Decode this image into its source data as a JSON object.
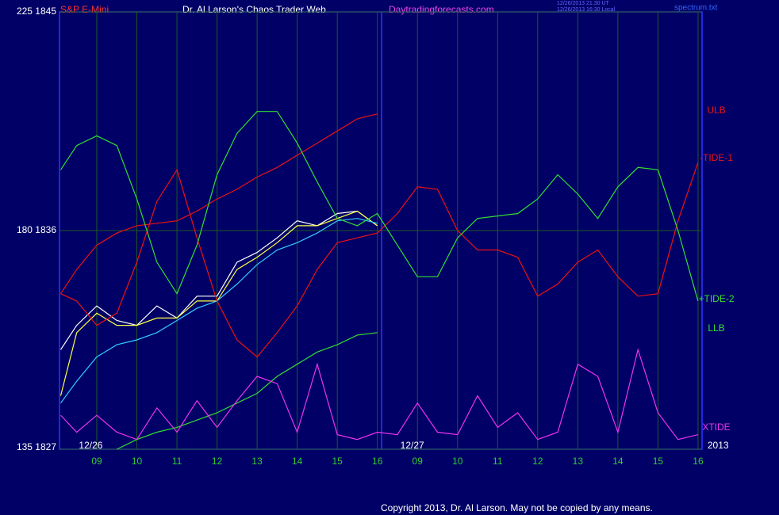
{
  "chart_data": {
    "type": "line",
    "header": {
      "instrument": "S&P E-Mini",
      "title": "Dr. Al Larson's Chaos Trader Web",
      "site": "Daytradingforecasts.com",
      "stamp_1": "12/26/2013 21:30 UT",
      "stamp_2": "12/26/2013 16:30 Local",
      "file": "spectrum.txt"
    },
    "footer": "Copyright 2013, Dr. Al Larson. May not be copied by any means.",
    "x": [
      0.1,
      0.5,
      1,
      1.5,
      2,
      2.5,
      3,
      3.5,
      4,
      4.5,
      5,
      5.5,
      6,
      6.5,
      7,
      7.5,
      8,
      8.5,
      9,
      9.5,
      10,
      10.5,
      11,
      11.5,
      12,
      12.5,
      13,
      13.5,
      14,
      14.5,
      15,
      15.5,
      16
    ],
    "xlim": [
      0.07,
      16.1
    ],
    "xticks": [
      {
        "value": 1,
        "label": "09"
      },
      {
        "value": 2,
        "label": "10"
      },
      {
        "value": 3,
        "label": "11"
      },
      {
        "value": 4,
        "label": "12"
      },
      {
        "value": 5,
        "label": "13"
      },
      {
        "value": 6,
        "label": "14"
      },
      {
        "value": 7,
        "label": "15"
      },
      {
        "value": 8,
        "label": "16"
      },
      {
        "value": 9,
        "label": "09"
      },
      {
        "value": 10,
        "label": "10"
      },
      {
        "value": 11,
        "label": "11"
      },
      {
        "value": 12,
        "label": "12"
      },
      {
        "value": 13,
        "label": "13"
      },
      {
        "value": 14,
        "label": "14"
      },
      {
        "value": 15,
        "label": "15"
      },
      {
        "value": 16,
        "label": "16"
      }
    ],
    "date_labels": [
      {
        "value": 0.85,
        "label": "12/26"
      },
      {
        "value": 8.87,
        "label": "12/27"
      },
      {
        "value": 16.5,
        "label": "2013"
      }
    ],
    "ylim": [
      1827,
      1845
    ],
    "yticks": [
      {
        "value": 1827,
        "label": "135 1827"
      },
      {
        "value": 1836,
        "label": "180 1836"
      },
      {
        "value": 1845,
        "label": "225 1845"
      }
    ],
    "grid": true,
    "series": [
      {
        "color": "#ffffff",
        "values": [
          1831.1,
          1832.1,
          1832.9,
          1832.3,
          1832.1,
          1832.9,
          1832.4,
          1833.3,
          1833.3,
          1834.7,
          1835.1,
          1835.7,
          1836.4,
          1836.2,
          1836.7,
          1836.8,
          1836.2,
          null,
          null,
          null,
          null,
          null,
          null,
          null,
          null,
          null,
          null,
          null,
          null,
          null,
          null,
          null,
          null
        ]
      },
      {
        "color": "#ffff44",
        "values": [
          1829.2,
          1831.8,
          1832.6,
          1832.1,
          1832.1,
          1832.4,
          1832.4,
          1833.1,
          1833.1,
          1834.4,
          1834.9,
          1835.5,
          1836.2,
          1836.2,
          1836.5,
          1836.8,
          1836.2,
          null,
          null,
          null,
          null,
          null,
          null,
          null,
          null,
          null,
          null,
          null,
          null,
          null,
          null,
          null,
          null
        ]
      },
      {
        "color": "#33ccff",
        "values": [
          1828.9,
          1829.8,
          1830.8,
          1831.3,
          1831.5,
          1831.8,
          1832.3,
          1832.8,
          1833.1,
          1833.8,
          1834.6,
          1835.2,
          1835.5,
          1835.9,
          1836.4,
          1836.5,
          1836.3,
          null,
          null,
          null,
          null,
          null,
          null,
          null,
          null,
          null,
          null,
          null,
          null,
          null,
          null,
          null,
          null
        ]
      },
      {
        "name": "ULB",
        "color": "#ee1111",
        "values": [
          1833.4,
          1834.4,
          1835.4,
          1835.9,
          1836.2,
          1836.3,
          1836.4,
          1836.8,
          1837.3,
          1837.7,
          1838.2,
          1838.6,
          1839.1,
          1839.6,
          1840.1,
          1840.6,
          1840.8,
          null,
          null,
          null,
          null,
          null,
          null,
          null,
          null,
          null,
          null,
          null,
          null,
          null,
          null,
          null,
          null
        ]
      },
      {
        "name": "-TIDE-1",
        "color": "#ee1111",
        "values": [
          1833.4,
          1833.1,
          1832.1,
          1832.6,
          1834.7,
          1837.2,
          1838.5,
          1835.7,
          1833.1,
          1831.5,
          1830.8,
          1831.8,
          1832.9,
          1834.4,
          1835.5,
          1835.7,
          1835.9,
          1836.7,
          1837.8,
          1837.7,
          1836.0,
          1835.2,
          1835.2,
          1834.9,
          1833.3,
          1833.8,
          1834.7,
          1835.2,
          1834.1,
          1833.3,
          1833.4,
          1836.4,
          1838.8
        ]
      },
      {
        "name": "+TIDE-2",
        "color": "#33dd33",
        "values": [
          1838.5,
          1839.5,
          1839.9,
          1839.5,
          1837.3,
          1834.7,
          1833.4,
          1835.4,
          1838.3,
          1840.0,
          1840.9,
          1840.9,
          1839.6,
          1838.0,
          1836.5,
          1836.2,
          1836.7,
          1835.4,
          1834.1,
          1834.1,
          1835.7,
          1836.5,
          1836.6,
          1836.7,
          1837.3,
          1838.3,
          1837.5,
          1836.5,
          1837.8,
          1838.6,
          1838.5,
          1836.0,
          1833.1
        ]
      },
      {
        "name": "LLB",
        "color": "#33dd33",
        "values": [
          null,
          null,
          null,
          1827.0,
          1827.4,
          1827.7,
          1827.9,
          1828.2,
          1828.5,
          1828.9,
          1829.3,
          1830.0,
          1830.5,
          1831.0,
          1831.3,
          1831.7,
          1831.8,
          null,
          null,
          null,
          null,
          null,
          null,
          null,
          null,
          null,
          null,
          null,
          null,
          null,
          null,
          null,
          null
        ]
      },
      {
        "name": "XTIDE",
        "color": "#ee33ee",
        "values": [
          1828.4,
          1827.7,
          1828.4,
          1827.7,
          1827.4,
          1828.7,
          1827.7,
          1829.0,
          1827.9,
          1829.0,
          1830.0,
          1829.7,
          1827.7,
          1830.5,
          1827.6,
          1827.4,
          1827.7,
          1827.6,
          1828.9,
          1827.7,
          1827.6,
          1829.2,
          1827.9,
          1828.5,
          1827.4,
          1827.7,
          1830.5,
          1830.0,
          1827.7,
          1831.1,
          1828.5,
          1827.4,
          1827.6
        ]
      }
    ]
  }
}
